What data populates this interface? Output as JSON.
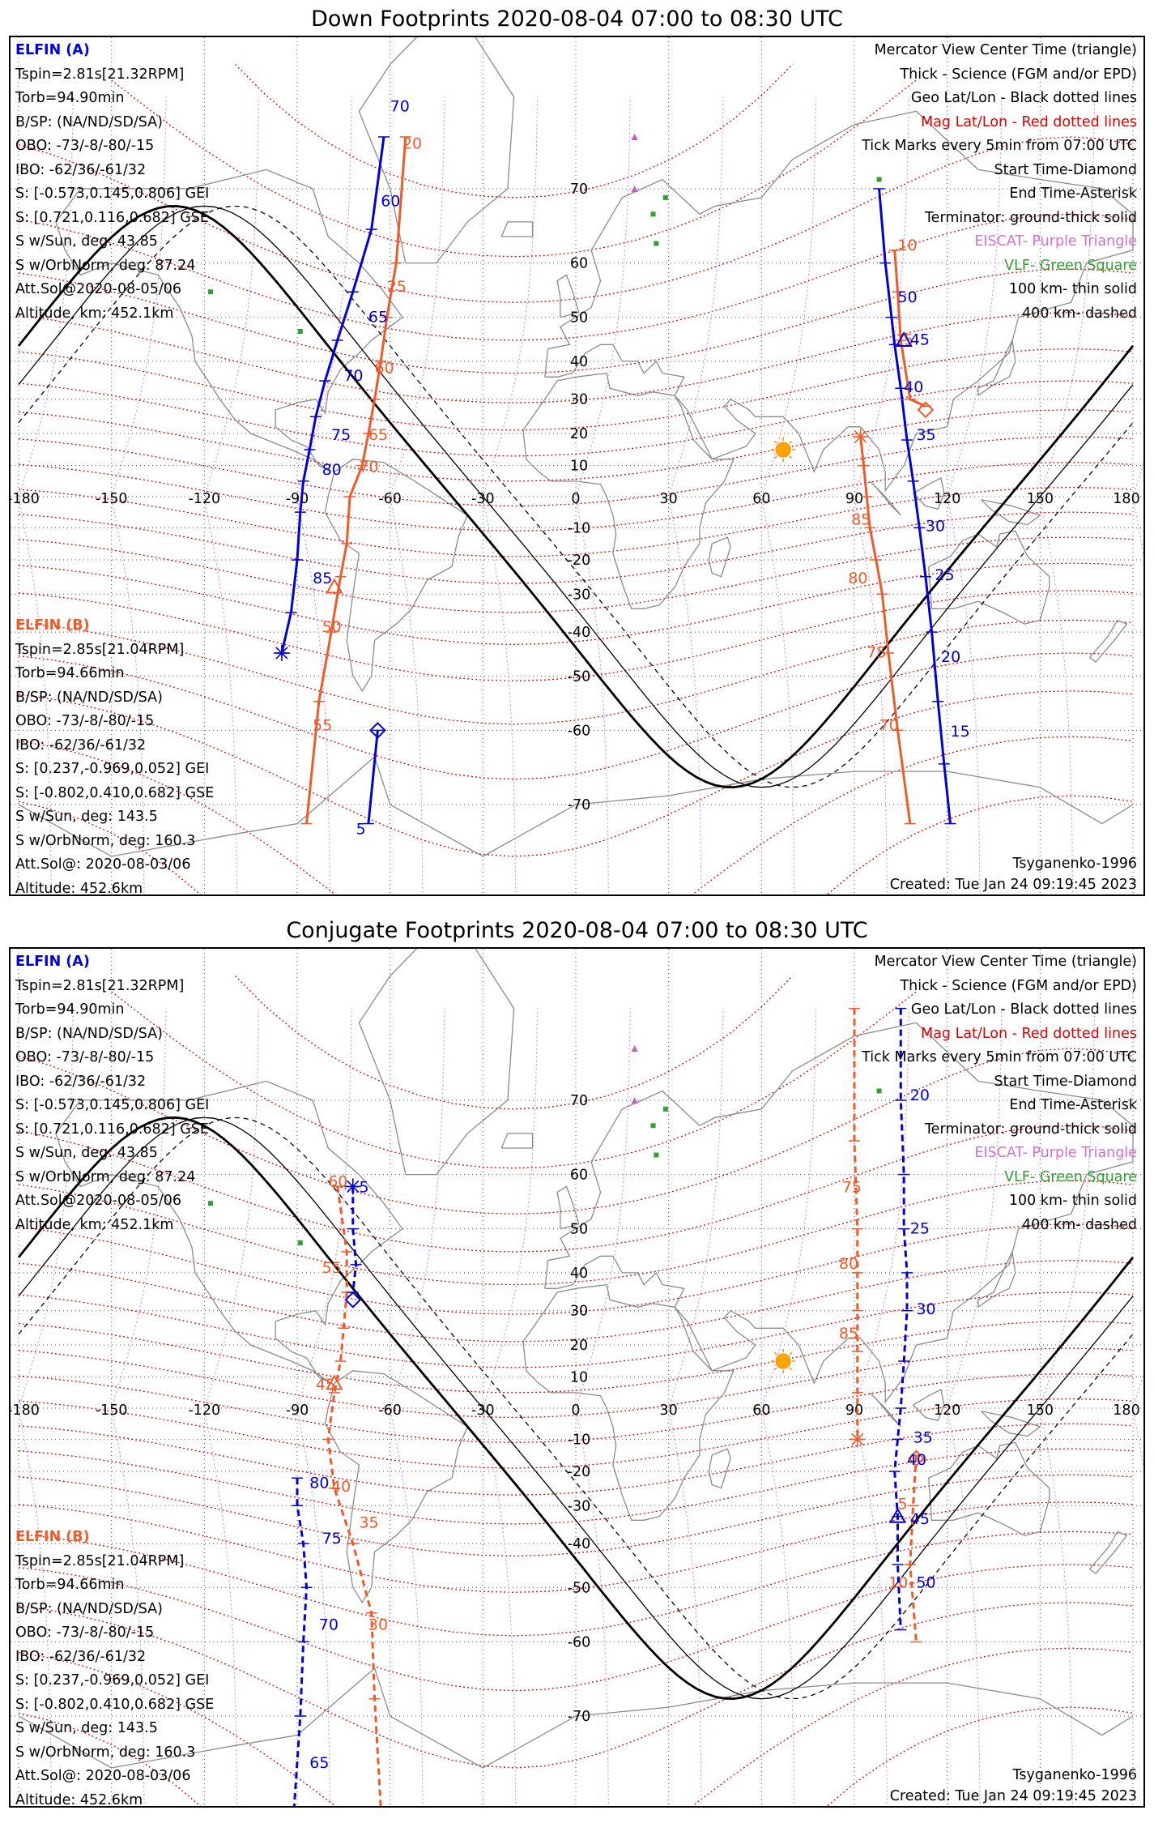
{
  "panels": [
    {
      "id": "down",
      "title": "Down Footprints 2020-08-04 07:00 to 08:30 UTC",
      "dashed": false,
      "lon_ticks": [
        "-180",
        "-150",
        "-120",
        "-90",
        "-60",
        "-30",
        "0",
        "30",
        "60",
        "90",
        "120",
        "150",
        "180"
      ],
      "lat_ticks": [
        "70",
        "60",
        "50",
        "40",
        "30",
        "20",
        "10",
        "-10",
        "-20",
        "-30",
        "-40",
        "-50",
        "-60",
        "-70"
      ],
      "zero_label": "0",
      "elfin_a": {
        "name": "ELFIN (A)",
        "lines": [
          "Tspin=2.81s[21.32RPM]",
          "Torb=94.90min",
          "B/SP: (NA/ND/SD/SA)",
          "OBO: -73/-8/-80/-15",
          "IBO: -62/36/-61/32",
          "S: [-0.573,0.145,0.806] GEI",
          "S: [0.721,0.116,0.682] GSE",
          "S w/Sun, deg: 43.85",
          "S w/OrbNorm, deg: 87.24",
          "Att.Sol@2020-08-05/06",
          "Altitude, km: 452.1km"
        ]
      },
      "elfin_b": {
        "name": "ELFIN (B)",
        "lines": [
          "Tspin=2.85s[21.04RPM]",
          "Torb=94.66min",
          "B/SP: (NA/ND/SD/SA)",
          "OBO: -73/-8/-80/-15",
          "IBO: -62/36/-61/32",
          "S: [0.237,-0.969,0.052] GEI",
          "S: [-0.802,0.410,0.682] GSE",
          "S w/Sun, deg: 143.5",
          "S w/OrbNorm, deg: 160.3",
          "Att.Sol@: 2020-08-03/06",
          "Altitude: 452.6km"
        ]
      },
      "legend": [
        {
          "text": "Mercator View Center Time (triangle)",
          "color": "#000000"
        },
        {
          "text": "Thick - Science (FGM and/or EPD)",
          "color": "#000000"
        },
        {
          "text": "Geo Lat/Lon - Black dotted lines",
          "color": "#000000"
        },
        {
          "text": "Mag Lat/Lon - Red dotted lines",
          "color": "#e00000"
        },
        {
          "text": "Tick Marks every 5min from 07:00 UTC",
          "color": "#000000"
        },
        {
          "text": "Start Time-Diamond",
          "color": "#000000"
        },
        {
          "text": "End Time-Asterisk",
          "color": "#000000"
        },
        {
          "text": "Terminator: ground-thick solid",
          "color": "#000000"
        },
        {
          "text": "EISCAT- Purple Triangle",
          "color": "#d070d0"
        },
        {
          "text": "VLF- Green Square",
          "color": "#30a030"
        },
        {
          "text": "100 km- thin solid",
          "color": "#000000"
        },
        {
          "text": "400 km- dashed",
          "color": "#000000"
        }
      ],
      "model": "Tsyganenko-1996",
      "created": "Created: Tue Jan 24 09:19:45 2023",
      "track_a": {
        "color": "#0000dd",
        "pass1": [
          [
            -62,
            75
          ],
          [
            -66,
            65
          ],
          [
            -72,
            55
          ],
          [
            -77,
            45
          ],
          [
            -81,
            35
          ],
          [
            -84,
            25
          ],
          [
            -86,
            15
          ],
          [
            -88,
            5
          ],
          [
            -89,
            -5
          ],
          [
            -90,
            -20
          ],
          [
            -92,
            -35
          ],
          [
            -95,
            -45
          ]
        ],
        "pass1_labels": [
          [
            "70",
            -60,
            77
          ],
          [
            "60",
            -63,
            68
          ],
          [
            "65",
            -67,
            49
          ],
          [
            "70",
            -75,
            35
          ],
          [
            "75",
            -79,
            18
          ],
          [
            "80",
            -82,
            7
          ],
          [
            "85",
            -85,
            -27
          ]
        ],
        "start": [
          -64,
          -60
        ],
        "pass1b": [
          [
            -64,
            -60
          ],
          [
            -67,
            -72
          ]
        ],
        "pass1b_labels": [
          [
            "5",
            -71,
            -73
          ]
        ],
        "pass2": [
          [
            98,
            70
          ],
          [
            100,
            60
          ],
          [
            102,
            50
          ],
          [
            103,
            44
          ],
          [
            105,
            33
          ],
          [
            107,
            18
          ],
          [
            109,
            5
          ],
          [
            111,
            -10
          ],
          [
            113,
            -25
          ],
          [
            115,
            -40
          ],
          [
            117,
            -55
          ],
          [
            119,
            -65
          ],
          [
            121,
            -72
          ]
        ],
        "pass2_labels": [
          [
            "50",
            104,
            53
          ],
          [
            "45",
            108,
            44
          ],
          [
            "40",
            106,
            32
          ],
          [
            "35",
            110,
            18
          ],
          [
            "30",
            113,
            -11
          ],
          [
            "25",
            116,
            -26
          ],
          [
            "20",
            118,
            -47
          ],
          [
            "15",
            121,
            -61
          ]
        ],
        "center": [
          106,
          45
        ]
      },
      "track_b": {
        "color": "#f05a28",
        "pass1": [
          [
            -55,
            75
          ],
          [
            -58,
            60
          ],
          [
            -61,
            50
          ],
          [
            -63,
            40
          ],
          [
            -65,
            30
          ],
          [
            -67,
            20
          ],
          [
            -69,
            10
          ],
          [
            -73,
            0
          ],
          [
            -74,
            -15
          ],
          [
            -76,
            -25
          ],
          [
            -79,
            -40
          ],
          [
            -83,
            -55
          ],
          [
            -87,
            -72
          ]
        ],
        "pass1_labels": [
          [
            "20",
            -56,
            74
          ],
          [
            "25",
            -61,
            55
          ],
          [
            "60",
            -65,
            37
          ],
          [
            "65",
            -67,
            18
          ],
          [
            "70",
            -70,
            8
          ],
          [
            "50",
            -82,
            -40
          ],
          [
            "55",
            -85,
            -60
          ]
        ],
        "center_b": [
          -78,
          -28
        ],
        "pass2": [
          [
            103,
            62
          ],
          [
            104,
            55
          ],
          [
            105,
            45
          ],
          [
            108,
            30
          ],
          [
            113,
            28
          ]
        ],
        "pass2_labels": [
          [
            "10",
            104,
            62
          ],
          [
            "5",
            106,
            44
          ]
        ],
        "start_b": [
          113,
          27
        ],
        "pass2c": [
          [
            92,
            19
          ],
          [
            93,
            10
          ],
          [
            94,
            0
          ],
          [
            95,
            -10
          ],
          [
            97,
            -20
          ],
          [
            99,
            -30
          ],
          [
            101,
            -45
          ],
          [
            104,
            -60
          ],
          [
            108,
            -72
          ]
        ],
        "pass2c_labels": [
          [
            "85",
            89,
            -9
          ],
          [
            "80",
            88,
            -27
          ],
          [
            "75",
            94,
            -46
          ],
          [
            "70",
            98,
            -60
          ]
        ],
        "end_b": [
          92,
          19
        ]
      }
    },
    {
      "id": "conj",
      "title": "Conjugate Footprints 2020-08-04 07:00 to 08:30 UTC",
      "dashed": true,
      "lon_ticks": [
        "-180",
        "-150",
        "-120",
        "-90",
        "-60",
        "-30",
        "0",
        "30",
        "60",
        "90",
        "120",
        "150",
        "180"
      ],
      "lat_ticks": [
        "70",
        "60",
        "50",
        "40",
        "30",
        "20",
        "10",
        "-10",
        "-20",
        "-30",
        "-40",
        "-50",
        "-60",
        "-70"
      ],
      "zero_label": "0",
      "elfin_a": {
        "name": "ELFIN (A)",
        "lines": [
          "Tspin=2.81s[21.32RPM]",
          "Torb=94.90min",
          "B/SP: (NA/ND/SD/SA)",
          "OBO: -73/-8/-80/-15",
          "IBO: -62/36/-61/32",
          "S: [-0.573,0.145,0.806] GEI",
          "S: [0.721,0.116,0.682] GSE",
          "S w/Sun, deg: 43.85",
          "S w/OrbNorm, deg: 87.24",
          "Att.Sol@2020-08-05/06",
          "Altitude, km: 452.1km"
        ]
      },
      "elfin_b": {
        "name": "ELFIN (B)",
        "lines": [
          "Tspin=2.85s[21.04RPM]",
          "Torb=94.66min",
          "B/SP: (NA/ND/SD/SA)",
          "OBO: -73/-8/-80/-15",
          "IBO: -62/36/-61/32",
          "S: [0.237,-0.969,0.052] GEI",
          "S: [-0.802,0.410,0.682] GSE",
          "S w/Sun, deg: 143.5",
          "S w/OrbNorm, deg: 160.3",
          "Att.Sol@: 2020-08-03/06",
          "Altitude: 452.6km"
        ]
      },
      "legend": [
        {
          "text": "Mercator View Center Time (triangle)",
          "color": "#000000"
        },
        {
          "text": "Thick - Science (FGM and/or EPD)",
          "color": "#000000"
        },
        {
          "text": "Geo Lat/Lon - Black dotted lines",
          "color": "#000000"
        },
        {
          "text": "Mag Lat/Lon - Red dotted lines",
          "color": "#e00000"
        },
        {
          "text": "Tick Marks every 5min from 07:00 UTC",
          "color": "#000000"
        },
        {
          "text": "Start Time-Diamond",
          "color": "#000000"
        },
        {
          "text": "End Time-Asterisk",
          "color": "#000000"
        },
        {
          "text": "Terminator: ground-thick solid",
          "color": "#000000"
        },
        {
          "text": "EISCAT- Purple Triangle",
          "color": "#d070d0"
        },
        {
          "text": "VLF- Green Square",
          "color": "#30a030"
        },
        {
          "text": "100 km- thin solid",
          "color": "#000000"
        },
        {
          "text": "400 km- dashed",
          "color": "#000000"
        }
      ],
      "model": "Tsyganenko-1996",
      "created": "Created: Tue Jan 24 09:19:45 2023",
      "track_a": {
        "color": "#0000dd",
        "pass1": [
          [
            -72,
            58
          ],
          [
            -72,
            50
          ],
          [
            -71,
            42
          ],
          [
            -72,
            35
          ]
        ],
        "pass1_labels": [
          [
            "5",
            -70,
            57
          ]
        ],
        "start": [
          -72,
          33
        ],
        "pass1b": [
          [
            -90,
            -22
          ],
          [
            -90,
            -30
          ],
          [
            -88,
            -40
          ],
          [
            -87,
            -50
          ],
          [
            -88,
            -60
          ],
          [
            -89,
            -70
          ],
          [
            -91,
            -78
          ]
        ],
        "pass1b_labels": [
          [
            "80",
            -86,
            -25
          ],
          [
            "75",
            -82,
            -40
          ],
          [
            "70",
            -83,
            -58
          ],
          [
            "65",
            -86,
            -75
          ]
        ],
        "pass2": [
          [
            105,
            78
          ],
          [
            105,
            70
          ],
          [
            106,
            60
          ],
          [
            106,
            50
          ],
          [
            107,
            40
          ],
          [
            107,
            30
          ],
          [
            106,
            15
          ],
          [
            105,
            0
          ],
          [
            104,
            -10
          ],
          [
            103,
            -20
          ],
          [
            104,
            -33
          ],
          [
            104,
            -45
          ],
          [
            105,
            -58
          ]
        ],
        "pass2_labels": [
          [
            "20",
            108,
            70
          ],
          [
            "25",
            108,
            49
          ],
          [
            "30",
            110,
            29
          ],
          [
            "35",
            109,
            -11
          ],
          [
            "40",
            107,
            -18
          ],
          [
            "45",
            108,
            -35
          ],
          [
            "50",
            110,
            -50
          ]
        ],
        "center": [
          104,
          -33
        ]
      },
      "track_b": {
        "color": "#f05a28",
        "pass1": [
          [
            -77,
            58
          ],
          [
            -74,
            45
          ],
          [
            -74,
            35
          ],
          [
            -75,
            25
          ],
          [
            -76,
            15
          ],
          [
            -78,
            5
          ],
          [
            -80,
            -10
          ],
          [
            -78,
            -25
          ],
          [
            -72,
            -40
          ],
          [
            -66,
            -55
          ],
          [
            -65,
            -68
          ],
          [
            -63,
            -78
          ]
        ],
        "pass1_labels": [
          [
            "60",
            -80,
            58
          ],
          [
            "55",
            -82,
            40
          ],
          [
            "45",
            -84,
            6
          ],
          [
            "40",
            -79,
            -26
          ],
          [
            "35",
            -70,
            -36
          ],
          [
            "30",
            -67,
            -58
          ]
        ],
        "center_b": [
          -78,
          8
        ],
        "pass2": [
          [
            90,
            78
          ],
          [
            90,
            65
          ],
          [
            91,
            50
          ],
          [
            91,
            40
          ],
          [
            91,
            30
          ],
          [
            91,
            18
          ],
          [
            91,
            5
          ],
          [
            91,
            -10
          ]
        ],
        "pass2_labels": [
          [
            "75",
            86,
            57
          ],
          [
            "80",
            85,
            41
          ],
          [
            "85",
            85,
            22
          ]
        ],
        "end_b": [
          91,
          -10
        ],
        "pass2c": [
          [
            110,
            -15
          ],
          [
            109,
            -30
          ],
          [
            108,
            -45
          ],
          [
            110,
            -60
          ]
        ],
        "pass2c_labels": [
          [
            "5",
            104,
            -31
          ],
          [
            "10",
            101,
            -50
          ]
        ],
        "start_b": [
          110,
          -16
        ]
      }
    }
  ]
}
